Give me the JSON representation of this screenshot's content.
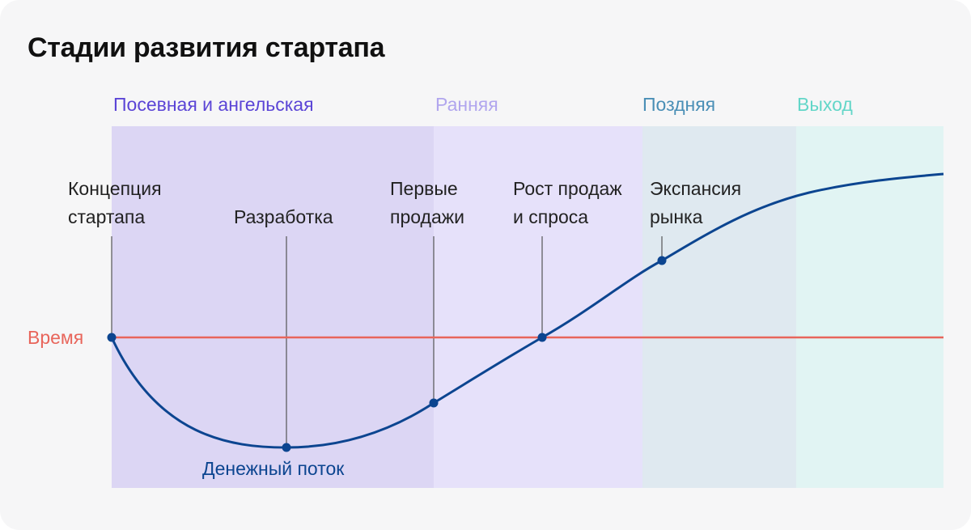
{
  "title": "Стадии развития стартапа",
  "stages": [
    {
      "label": "Посевная и ангельская",
      "color": "#5b45d6",
      "fill": "#dcd6f4"
    },
    {
      "label": "Ранняя",
      "color": "#b1a6ee",
      "fill": "#e6e1fa"
    },
    {
      "label": "Поздняя",
      "color": "#4a8fb6",
      "fill": "#dfe9f0"
    },
    {
      "label": "Выход",
      "color": "#63d6c8",
      "fill": "#e1f4f3"
    }
  ],
  "milestones": [
    {
      "line1": "Концепция",
      "line2": "стартапа"
    },
    {
      "line1": "Разработка",
      "line2": ""
    },
    {
      "line1": "Первые",
      "line2": "продажи"
    },
    {
      "line1": "Рост продаж",
      "line2": "и спроса"
    },
    {
      "line1": "Экспансия",
      "line2": "рынка"
    }
  ],
  "time_axis": {
    "label": "Время",
    "color": "#e8655b"
  },
  "cash_flow": {
    "label": "Денежный поток",
    "color": "#0c4590"
  },
  "connector_color": "#555555"
}
